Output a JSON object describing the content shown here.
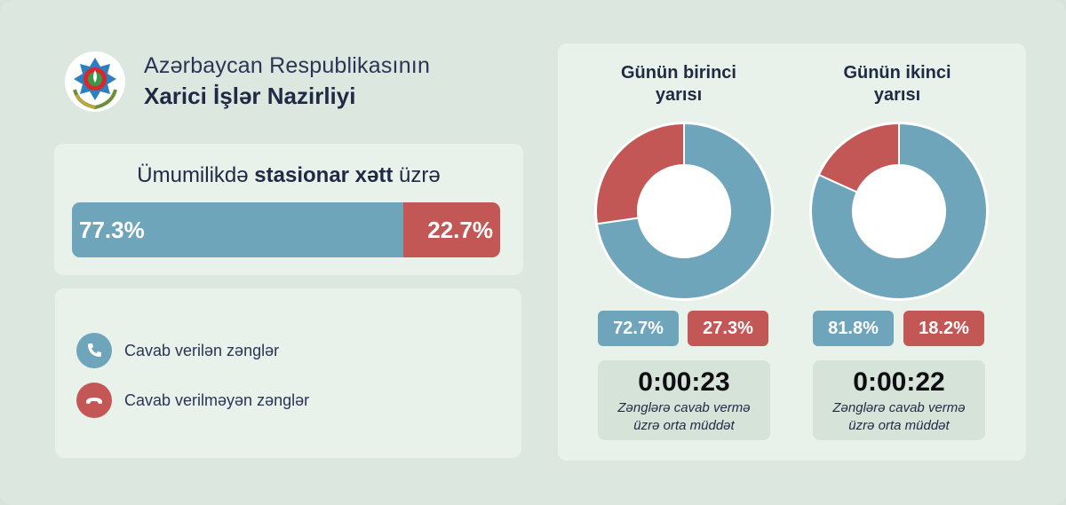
{
  "header": {
    "line1": "Azərbaycan Respublikasının",
    "line2": "Xarici İşlər Nazirliyi",
    "emblem_icon": "azerbaijan-emblem-icon"
  },
  "colors": {
    "answered": "#6fa5ba",
    "unanswered": "#c25756",
    "background": "#dce7df",
    "card": "#e8f1ea"
  },
  "total": {
    "title_prefix": "Ümumilikdə",
    "title_bold": "stasionar xətt",
    "title_suffix": "üzrə",
    "answered_label": "77.3%",
    "unanswered_label": "22.7%"
  },
  "legend": {
    "answered_label": "Cavab verilən zənglər",
    "answered_icon": "phone-answer-icon",
    "unanswered_label": "Cavab verilməyən zənglər",
    "unanswered_icon": "phone-hangup-icon"
  },
  "halves": [
    {
      "title_line1": "Günün birinci",
      "title_line2": "yarısı",
      "answered_label": "72.7%",
      "unanswered_label": "27.3%",
      "duration": "0:00:23",
      "duration_line1": "Zənglərə cavab vermə",
      "duration_line2": "üzrə orta müddət"
    },
    {
      "title_line1": "Günün ikinci",
      "title_line2": "yarısı",
      "answered_label": "81.8%",
      "unanswered_label": "18.2%",
      "duration": "0:00:22",
      "duration_line1": "Zənglərə cavab vermə",
      "duration_line2": "üzrə orta müddət"
    }
  ],
  "chart_data": [
    {
      "type": "bar",
      "title": "Ümumilikdə stasionar xətt üzrə",
      "categories": [
        "Cavab verilən zənglər",
        "Cavab verilməyən zənglər"
      ],
      "values": [
        77.3,
        22.7
      ]
    },
    {
      "type": "pie",
      "title": "Günün birinci yarısı",
      "categories": [
        "Cavab verilən zənglər",
        "Cavab verilməyən zənglər"
      ],
      "values": [
        72.7,
        27.3
      ]
    },
    {
      "type": "pie",
      "title": "Günün ikinci yarısı",
      "categories": [
        "Cavab verilən zənglər",
        "Cavab verilməyən zənglər"
      ],
      "values": [
        81.8,
        18.2
      ]
    }
  ]
}
